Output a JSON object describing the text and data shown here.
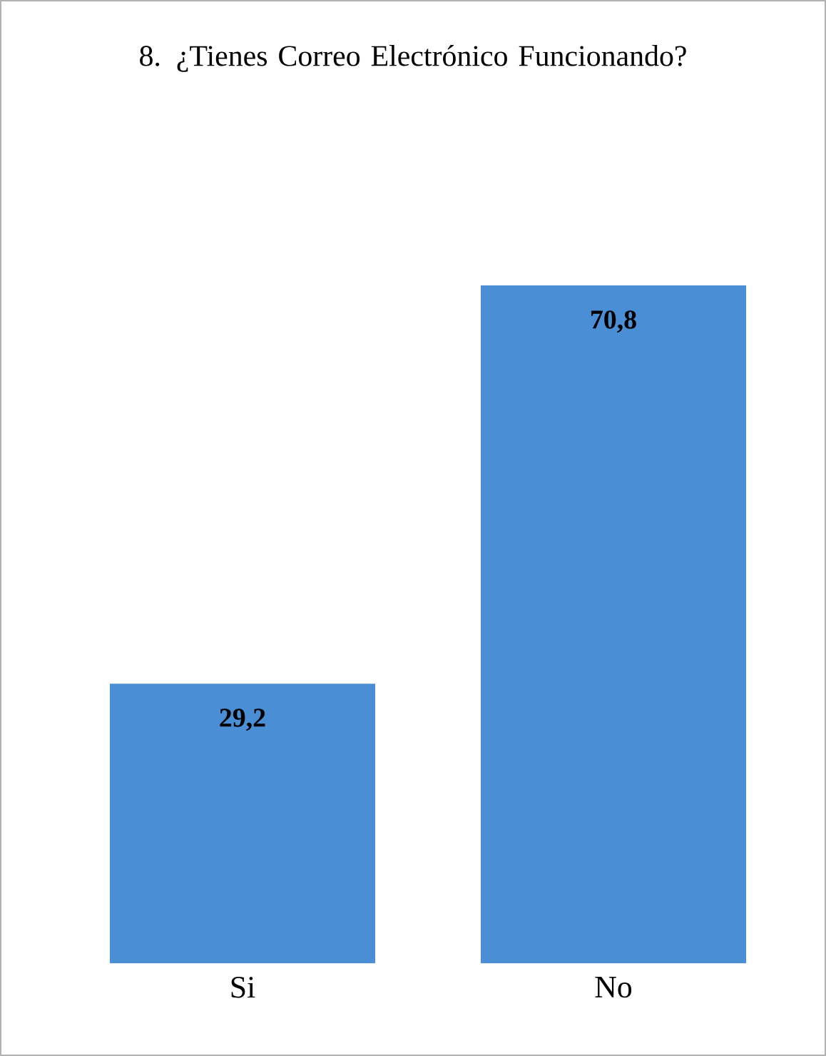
{
  "chart_data": {
    "type": "bar",
    "title": "8.      ¿Tienes Correo Electrónico Funcionando?",
    "categories": [
      "Si",
      "No"
    ],
    "values": [
      29.2,
      70.8
    ],
    "value_labels": [
      "29,2",
      "70,8"
    ],
    "color": "#4a8ed6"
  }
}
